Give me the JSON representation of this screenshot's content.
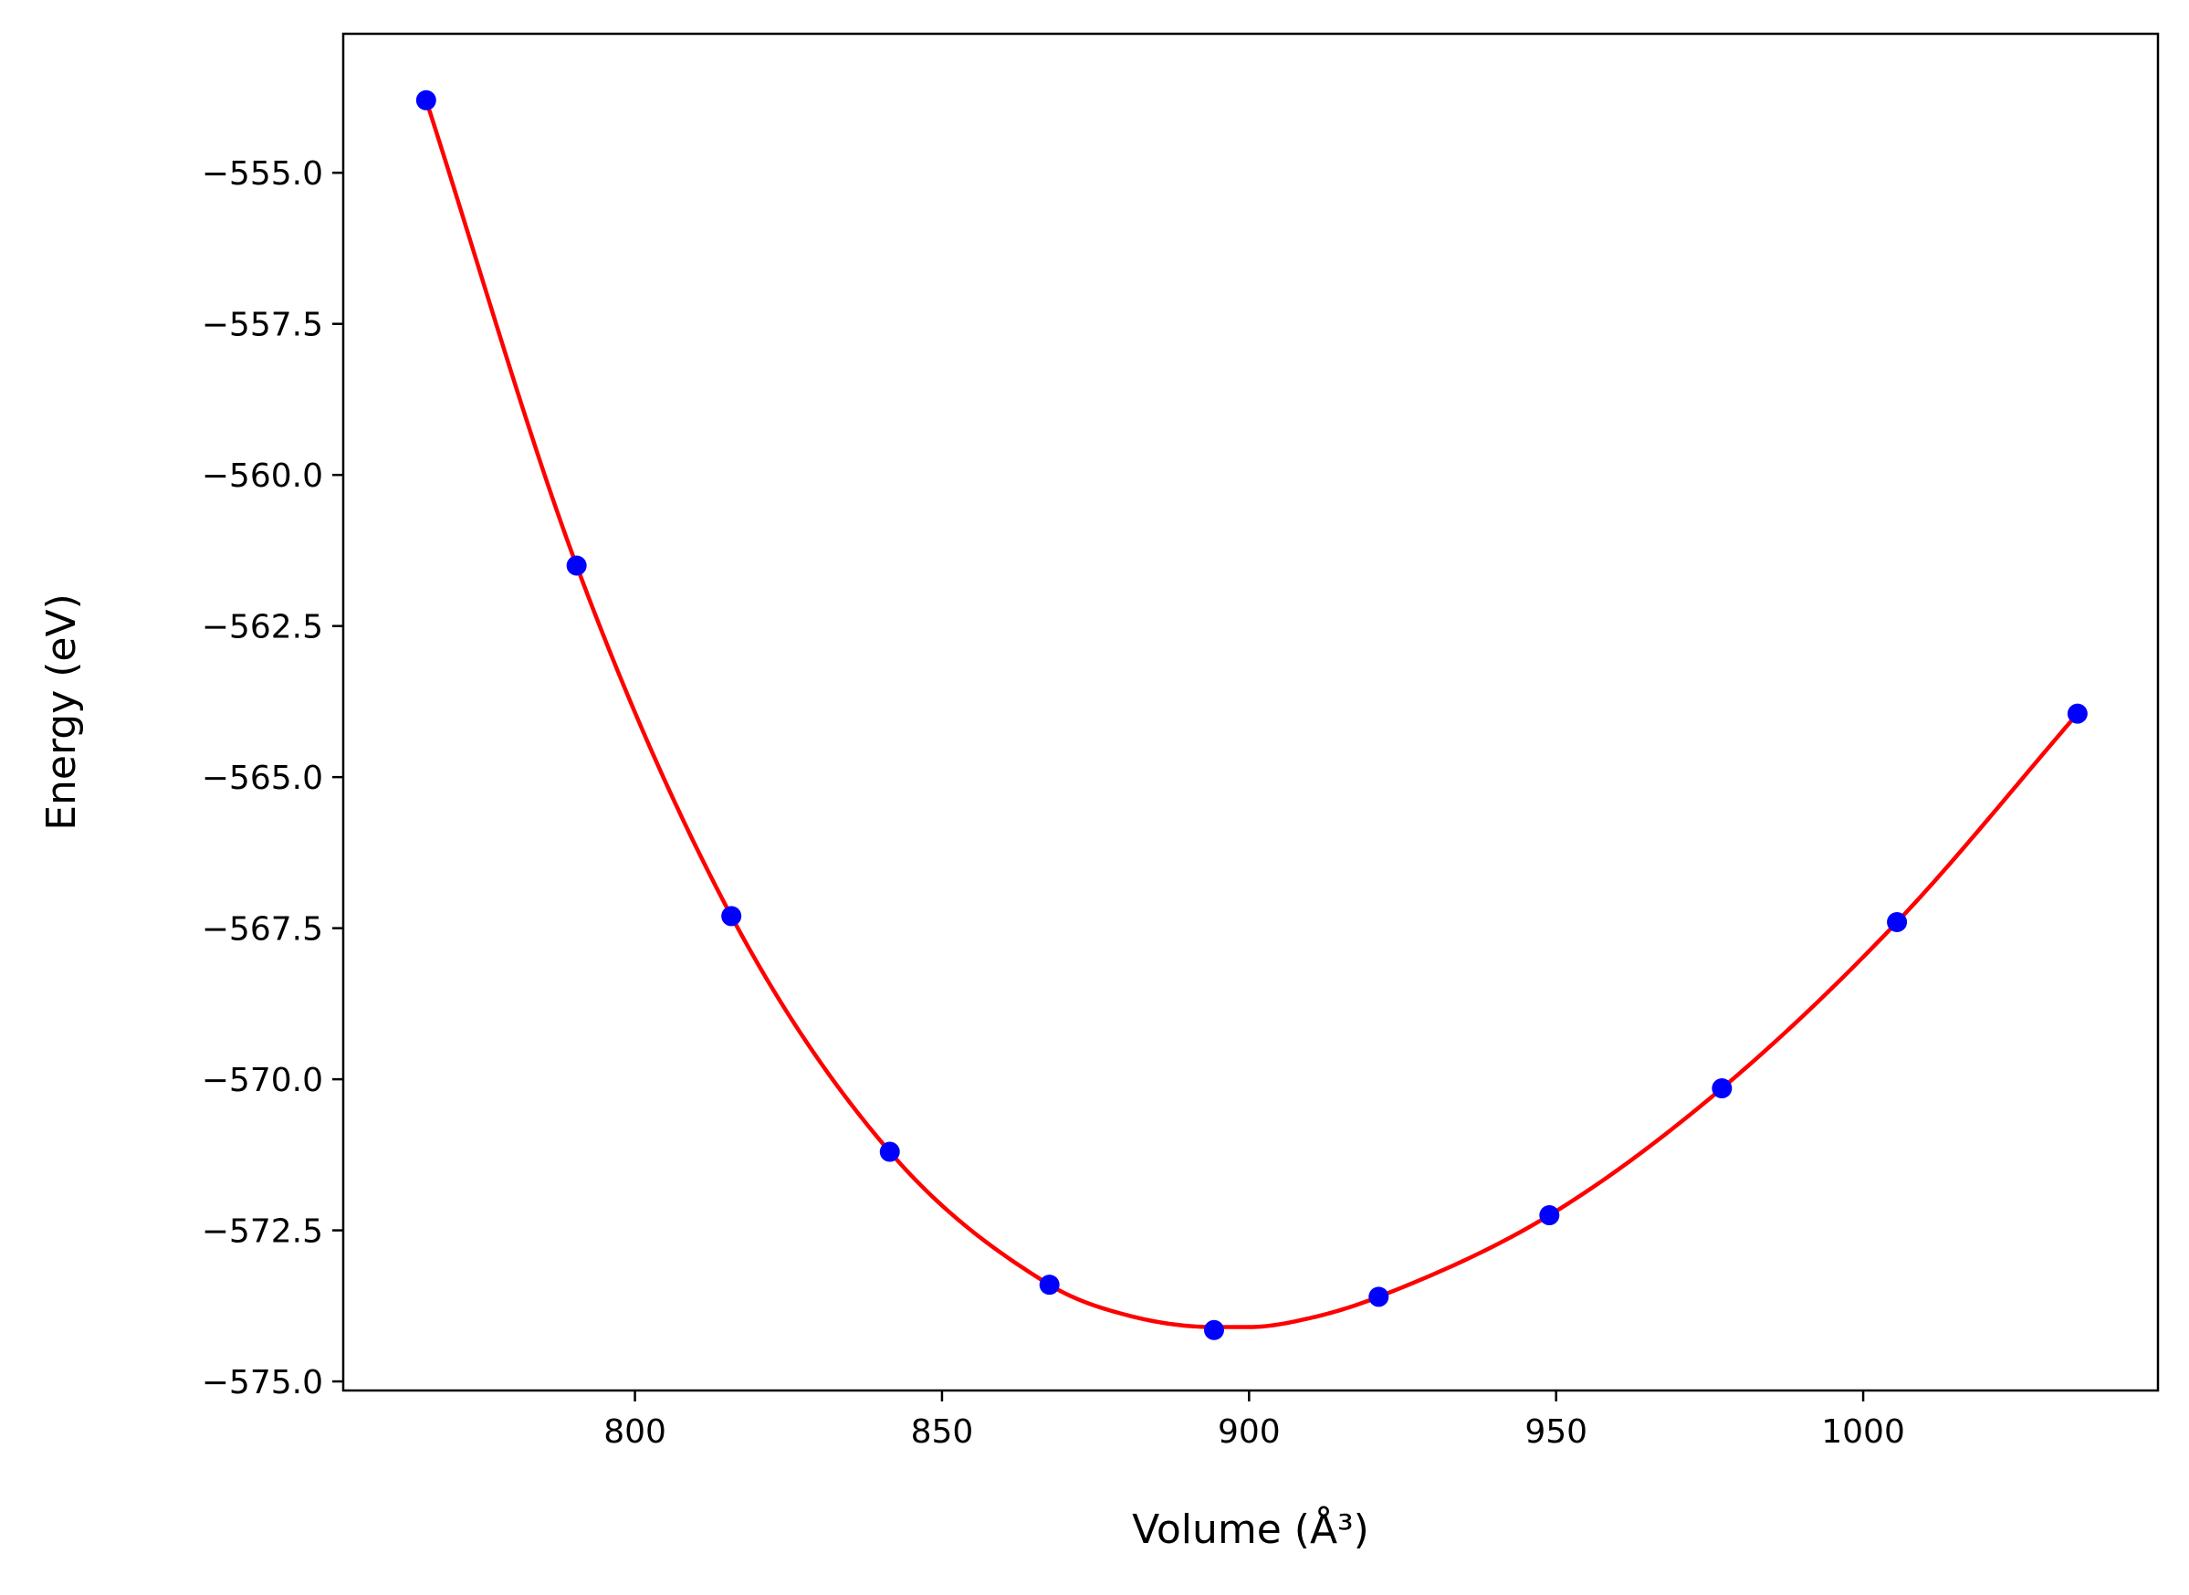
{
  "chart_data": {
    "type": "scatter",
    "xlabel": "Volume (Å³)",
    "ylabel": "Energy (eV)",
    "xlim": [
      752.5,
      1048
    ],
    "ylim": [
      -575.15,
      -552.7
    ],
    "x_ticks": [
      800,
      850,
      900,
      950,
      1000
    ],
    "x_tick_labels": [
      "800",
      "850",
      "900",
      "950",
      "1000"
    ],
    "y_ticks": [
      -555.0,
      -557.5,
      -560.0,
      -562.5,
      -565.0,
      -567.5,
      -570.0,
      -572.5,
      -575.0
    ],
    "y_tick_labels": [
      "−555.0",
      "−557.5",
      "−560.0",
      "−562.5",
      "−565.0",
      "−567.5",
      "−570.0",
      "−572.5",
      "−575.0"
    ],
    "grid": false,
    "series": [
      {
        "kind": "points",
        "color": "#0000ff",
        "x": [
          766.0,
          790.5,
          815.7,
          841.5,
          867.5,
          894.3,
          921.1,
          948.9,
          977.0,
          1005.5,
          1034.9
        ],
        "y": [
          -553.8,
          -561.5,
          -567.3,
          -571.2,
          -573.4,
          -574.15,
          -573.6,
          -572.25,
          -570.15,
          -567.4,
          -563.95
        ]
      },
      {
        "kind": "fit-curve",
        "color": "#ff0000",
        "x": [
          766.0,
          790.5,
          815.7,
          841.5,
          867.5,
          880.0,
          894.3,
          900.0,
          910.0,
          921.1,
          948.9,
          977.0,
          1005.5,
          1034.9
        ],
        "y": [
          -553.8,
          -561.5,
          -567.3,
          -571.2,
          -573.4,
          -573.9,
          -574.1,
          -574.1,
          -573.95,
          -573.6,
          -572.25,
          -570.15,
          -567.4,
          -563.95
        ]
      }
    ]
  }
}
